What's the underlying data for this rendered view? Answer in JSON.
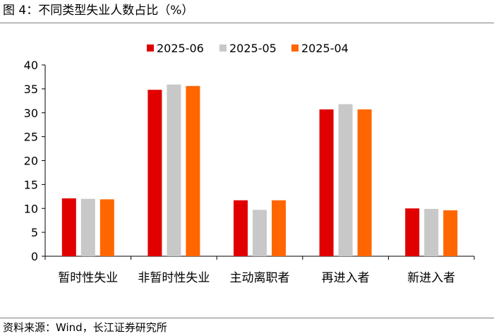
{
  "figure": {
    "title": "图 4：不同类型失业人数占比（%）",
    "source": "资料来源：Wind，长江证券研究所"
  },
  "chart_data": {
    "type": "bar",
    "title": "",
    "xlabel": "",
    "ylabel": "",
    "ylim": [
      0,
      40
    ],
    "yticks": [
      "0",
      "5",
      "10",
      "15",
      "20",
      "25",
      "30",
      "35",
      "40"
    ],
    "grid": false,
    "legend_position": "top",
    "categories": [
      "暂时性失业",
      "非暂时性失业",
      "主动离职者",
      "再进入者",
      "新进入者"
    ],
    "series": [
      {
        "name": "2025-06",
        "color": "#e00000",
        "values": [
          12.1,
          34.8,
          11.7,
          30.7,
          10.0
        ]
      },
      {
        "name": "2025-05",
        "color": "#c8c8c8",
        "values": [
          12.0,
          35.9,
          9.7,
          31.8,
          9.9
        ]
      },
      {
        "name": "2025-04",
        "color": "#ff6600",
        "values": [
          11.9,
          35.6,
          11.7,
          30.7,
          9.6
        ]
      }
    ]
  }
}
